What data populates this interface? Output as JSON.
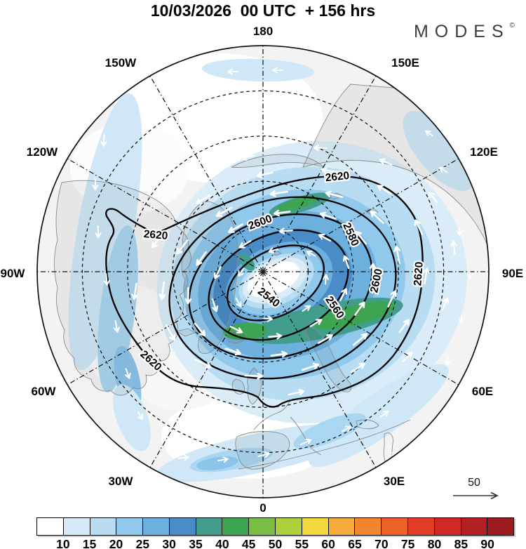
{
  "header": {
    "title": "10/03/2026  00 UTC  + 156 hrs",
    "brand": "MODES",
    "brand_mark": "©"
  },
  "map": {
    "longitude_labels": [
      "180",
      "150E",
      "120E",
      "90E",
      "60E",
      "30E",
      "0",
      "30W",
      "60W",
      "90W",
      "120W",
      "150W"
    ],
    "contour_labels": [
      {
        "text": "2620"
      },
      {
        "text": "2600"
      },
      {
        "text": "2580"
      },
      {
        "text": "2620"
      },
      {
        "text": "2540"
      },
      {
        "text": "2560"
      },
      {
        "text": "2600"
      },
      {
        "text": "2620"
      },
      {
        "text": "2620"
      }
    ],
    "reference_arrow_label": "50"
  },
  "colorbar": {
    "tick_labels": [
      "10",
      "15",
      "20",
      "25",
      "30",
      "35",
      "40",
      "45",
      "50",
      "55",
      "60",
      "65",
      "70",
      "75",
      "80",
      "85",
      "90"
    ],
    "cell_colors": [
      "#ffffff",
      "#d6eaf8",
      "#b8ddf2",
      "#91c9ec",
      "#6db0de",
      "#4a8cc7",
      "#439d8c",
      "#3da452",
      "#7abf44",
      "#abd03b",
      "#f2d93f",
      "#f3ab3b",
      "#f1862f",
      "#ec6127",
      "#e23c26",
      "#cd2824",
      "#b22023",
      "#9c1b1e"
    ]
  },
  "chart_data": {
    "type": "filled_contour_polar_map",
    "title": "10/03/2026  00 UTC  + 156 hrs",
    "valid": {
      "date": "10/03/2026",
      "hour": "00 UTC",
      "lead_time_hours": 156
    },
    "projection": "north_polar, 0 longitude at bottom, 180 at top",
    "contour_levels_labeled": [
      2540,
      2560,
      2580,
      2600,
      2620
    ],
    "contour_interval": 20,
    "shading_scale": {
      "tick_values": [
        10,
        15,
        20,
        25,
        30,
        35,
        40,
        45,
        50,
        55,
        60,
        65,
        70,
        75,
        80,
        85,
        90
      ],
      "colors": [
        "#ffffff",
        "#d6eaf8",
        "#b8ddf2",
        "#91c9ec",
        "#6db0de",
        "#4a8cc7",
        "#439d8c",
        "#3da452",
        "#7abf44",
        "#abd03b",
        "#f2d93f",
        "#f3ab3b",
        "#f1862f",
        "#ec6127",
        "#e23c26",
        "#cd2824",
        "#b22023",
        "#9c1b1e"
      ],
      "max_band_visible_on_map": "45-50"
    },
    "vector_reference_value": 50,
    "longitude_ring_labels": [
      "180",
      "150E",
      "120E",
      "90E",
      "60E",
      "30E",
      "0",
      "30W",
      "60W",
      "90W",
      "120W",
      "150W"
    ],
    "latitude_circles_dashed": 4,
    "visible_pattern": "closed cyclonic (counterclockwise) circulation centered near the pole; innermost labeled contour 2540, outermost 2620; annular blue wind-speed band with small teal/green maxima; white vector arrows follow the band"
  }
}
